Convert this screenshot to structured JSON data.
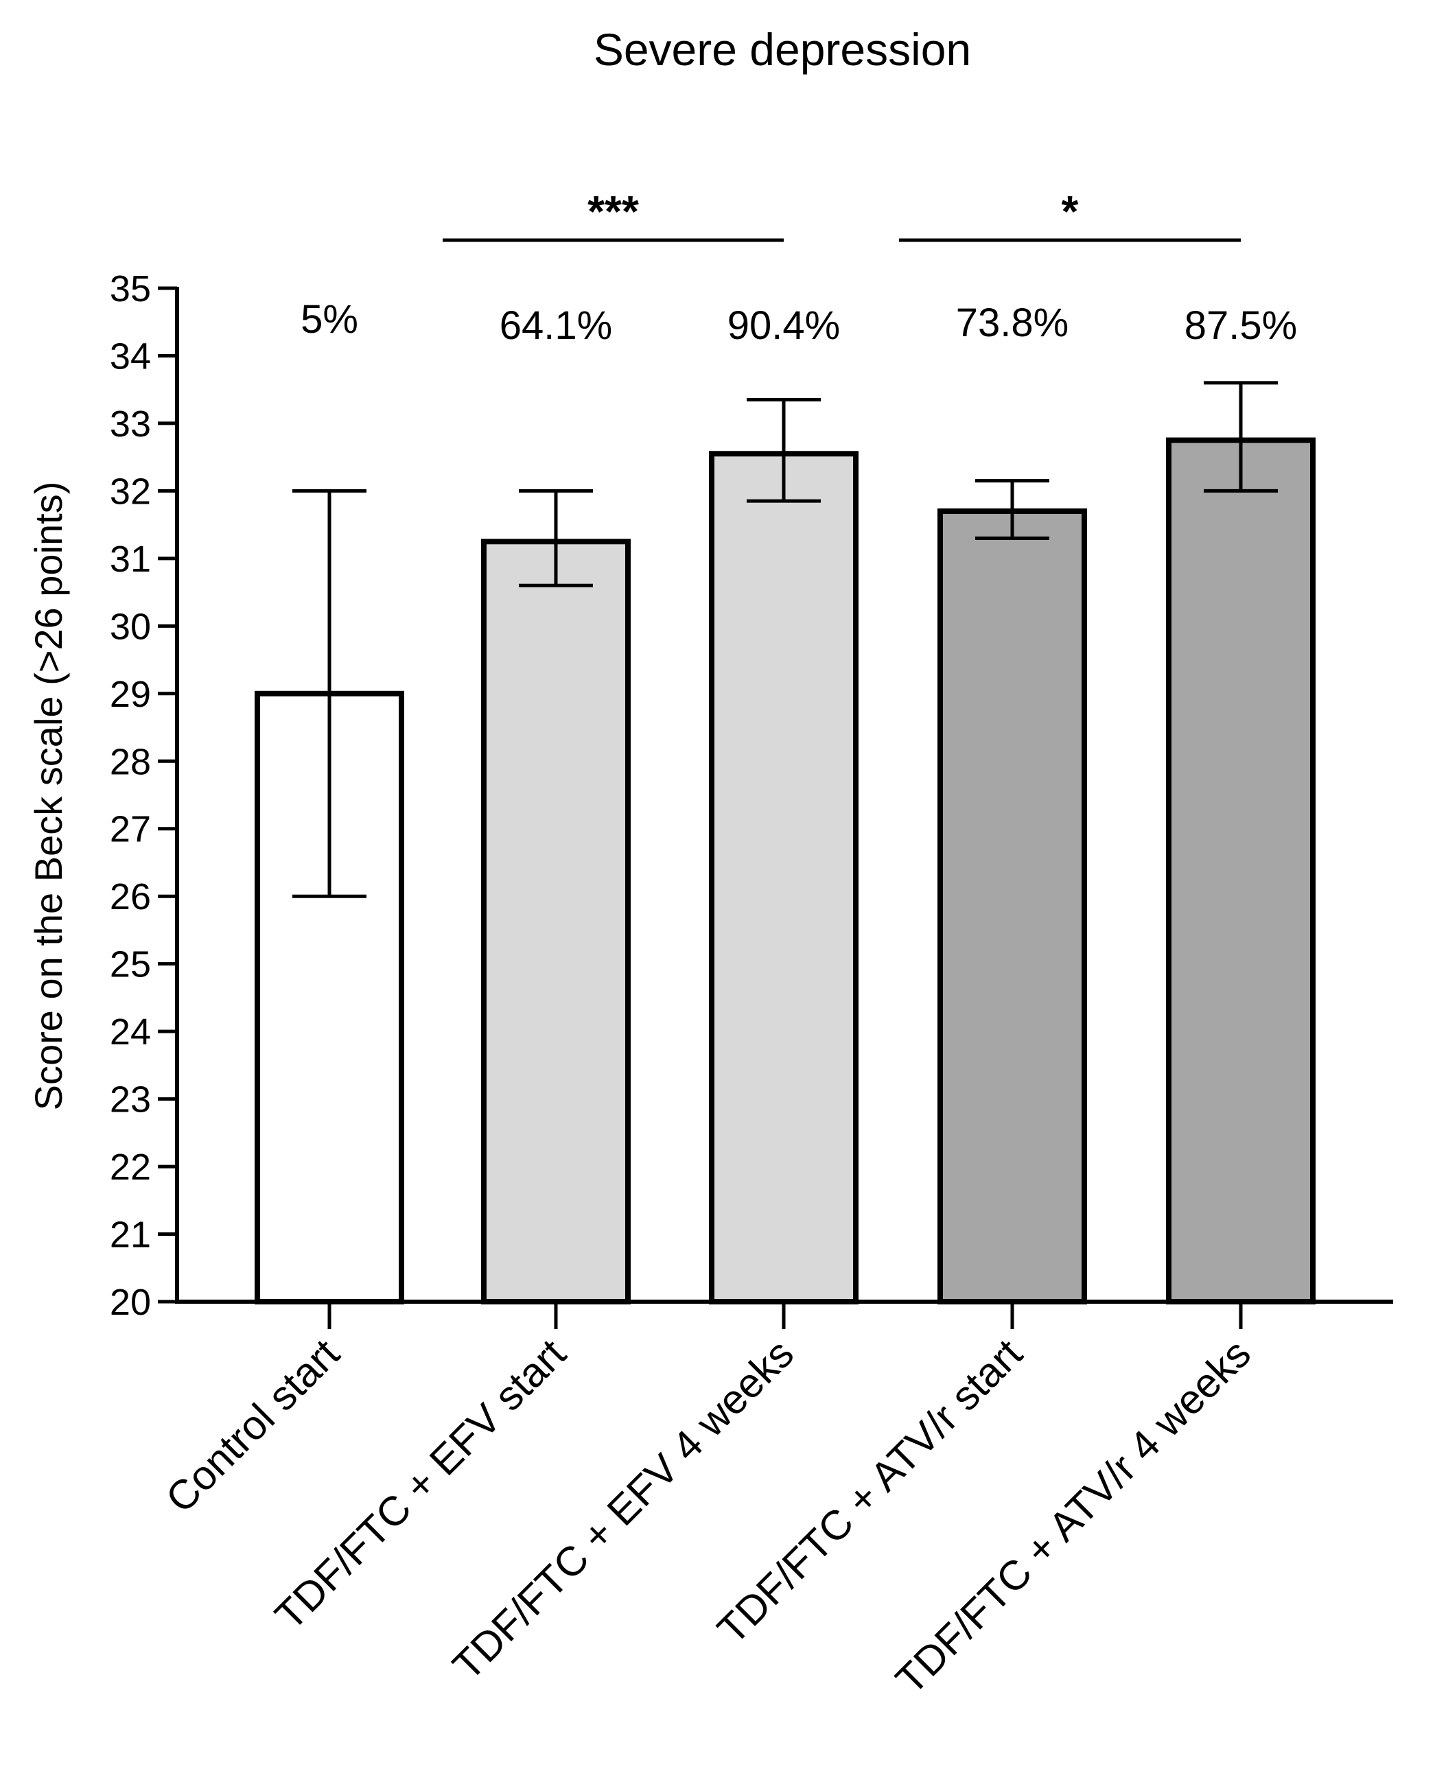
{
  "chart_data": {
    "type": "bar",
    "title": "Severe depression",
    "xlabel": "",
    "ylabel": "Score on the Beck scale (>26 points)",
    "ylim": [
      20,
      35
    ],
    "yticks": [
      20,
      21,
      22,
      23,
      24,
      25,
      26,
      27,
      28,
      29,
      30,
      31,
      32,
      33,
      34,
      35
    ],
    "grid": false,
    "categories": [
      "Control start",
      "TDF/FTC + EFV start",
      "TDF/FTC + EFV 4 weeks",
      "TDF/FTC + ATV/r start",
      "TDF/FTC + ATV/r 4 weeks"
    ],
    "values": [
      29.0,
      31.25,
      32.55,
      31.7,
      32.75
    ],
    "error_low": [
      26.0,
      30.6,
      31.85,
      31.3,
      32.0
    ],
    "error_high": [
      32.0,
      32.0,
      33.35,
      32.15,
      33.6
    ],
    "percent_labels": [
      "5%",
      "64.1%",
      "90.4%",
      "73.8%",
      "87.5%"
    ],
    "bar_colors": [
      "#ffffff",
      "#d9d9d9",
      "#d9d9d9",
      "#a6a6a6",
      "#a6a6a6"
    ],
    "significance": [
      {
        "from": 1,
        "to": 2,
        "label": "***"
      },
      {
        "from": 3,
        "to": 4,
        "label": "*"
      }
    ]
  }
}
